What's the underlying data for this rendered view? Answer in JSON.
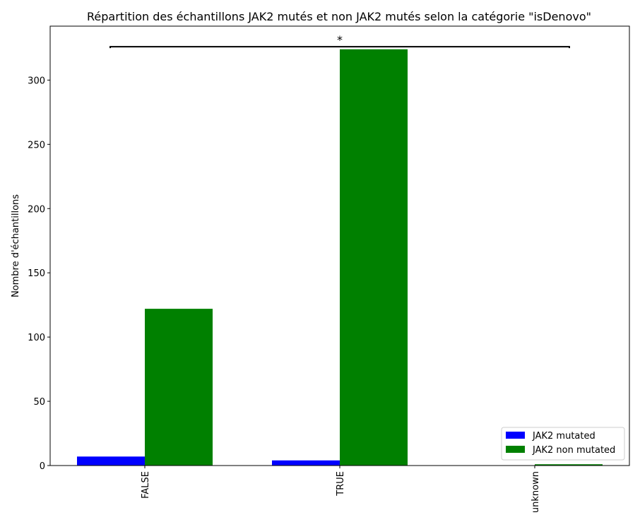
{
  "chart_data": {
    "type": "bar",
    "title": "Répartition des échantillons JAK2 mutés et non JAK2 mutés selon la catégorie \"isDenovo\"",
    "xlabel": "",
    "ylabel": "Nombre d'échantillons",
    "categories": [
      "FALSE",
      "TRUE",
      "unknown"
    ],
    "series": [
      {
        "name": "JAK2 mutated",
        "values": [
          7,
          4,
          0
        ],
        "color": "#0000ff"
      },
      {
        "name": "JAK2 non mutated",
        "values": [
          122,
          324,
          1
        ],
        "color": "#008000"
      }
    ],
    "ylim": [
      0,
      342
    ],
    "yticks": [
      0,
      50,
      100,
      150,
      200,
      250,
      300
    ],
    "grid": false,
    "legend_position": "lower-right",
    "annotation": {
      "text": "*",
      "from_category": "FALSE",
      "to_category": "unknown",
      "y": 326
    }
  }
}
